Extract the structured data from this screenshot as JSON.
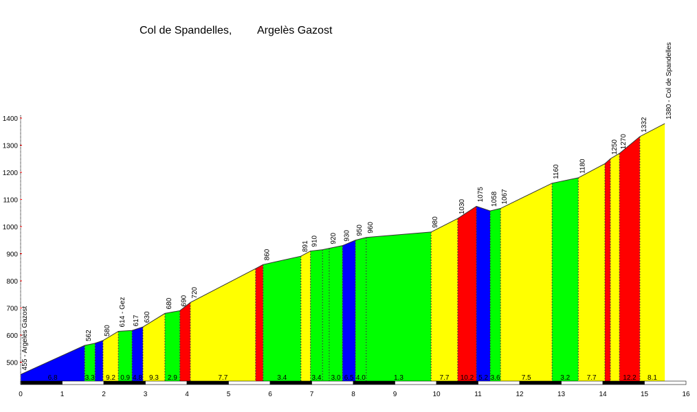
{
  "chart_data": {
    "type": "area",
    "title_left": "Col de Spandelles,",
    "title_right": "Argelès Gazost",
    "xlabel": "",
    "ylabel": "",
    "xlim": [
      0,
      16
    ],
    "ylim": [
      425,
      1400
    ],
    "x_ticks": [
      0,
      1,
      2,
      3,
      4,
      5,
      6,
      7,
      8,
      9,
      10,
      11,
      12,
      13,
      14,
      15,
      16
    ],
    "y_ticks": [
      500,
      600,
      700,
      800,
      900,
      1000,
      1100,
      1200,
      1300,
      1400
    ],
    "grid": false,
    "colors": {
      "blue": "#0000ff",
      "green": "#00ff00",
      "yellow": "#ffff00",
      "red": "#ff0000"
    },
    "points": [
      {
        "km": 0,
        "elev": 455,
        "label": "455 - Argelès Gazost"
      },
      {
        "km": 1.54,
        "elev": 562,
        "label": "562"
      },
      {
        "km": 1.79,
        "elev": 570,
        "label": ""
      },
      {
        "km": 1.98,
        "elev": 580,
        "label": "580"
      },
      {
        "km": 2.35,
        "elev": 614,
        "label": "614 - Gez"
      },
      {
        "km": 2.68,
        "elev": 617,
        "label": "617"
      },
      {
        "km": 2.94,
        "elev": 630,
        "label": "630"
      },
      {
        "km": 3.47,
        "elev": 680,
        "label": "680"
      },
      {
        "km": 3.83,
        "elev": 690,
        "label": "690"
      },
      {
        "km": 4.08,
        "elev": 720,
        "label": "720"
      },
      {
        "km": 5.65,
        "elev": 845,
        "label": ""
      },
      {
        "km": 5.83,
        "elev": 860,
        "label": "860"
      },
      {
        "km": 6.74,
        "elev": 891,
        "label": "891"
      },
      {
        "km": 6.97,
        "elev": 910,
        "label": "910"
      },
      {
        "km": 7.26,
        "elev": 915,
        "label": ""
      },
      {
        "km": 7.42,
        "elev": 920,
        "label": "920"
      },
      {
        "km": 7.74,
        "elev": 930,
        "label": "930"
      },
      {
        "km": 8.05,
        "elev": 950,
        "label": "950"
      },
      {
        "km": 8.31,
        "elev": 960,
        "label": "960"
      },
      {
        "km": 9.87,
        "elev": 980,
        "label": "980"
      },
      {
        "km": 10.51,
        "elev": 1030,
        "label": "1030"
      },
      {
        "km": 10.96,
        "elev": 1075,
        "label": "1075"
      },
      {
        "km": 11.29,
        "elev": 1058,
        "label": "1058"
      },
      {
        "km": 11.54,
        "elev": 1067,
        "label": "1067"
      },
      {
        "km": 12.78,
        "elev": 1160,
        "label": "1160"
      },
      {
        "km": 13.41,
        "elev": 1180,
        "label": "1180"
      },
      {
        "km": 14.05,
        "elev": 1232,
        "label": ""
      },
      {
        "km": 14.18,
        "elev": 1250,
        "label": "1250"
      },
      {
        "km": 14.4,
        "elev": 1270,
        "label": "1270"
      },
      {
        "km": 14.89,
        "elev": 1332,
        "label": "1332"
      },
      {
        "km": 15.49,
        "elev": 1380,
        "label": "1380 - Col de Spandelles"
      }
    ],
    "segments": [
      {
        "color": "blue",
        "grade": "6.8"
      },
      {
        "color": "green",
        "grade": "3.3"
      },
      {
        "color": "blue",
        "grade": ""
      },
      {
        "color": "yellow",
        "grade": "9.2"
      },
      {
        "color": "green",
        "grade": "0.9"
      },
      {
        "color": "blue",
        "grade": "4.8"
      },
      {
        "color": "yellow",
        "grade": "9.3"
      },
      {
        "color": "green",
        "grade": "2.9"
      },
      {
        "color": "red",
        "grade": ""
      },
      {
        "color": "yellow",
        "grade": "7.7"
      },
      {
        "color": "red",
        "grade": ""
      },
      {
        "color": "green",
        "grade": "3.4"
      },
      {
        "color": "yellow",
        "grade": ""
      },
      {
        "color": "green",
        "grade": "3.4"
      },
      {
        "color": "green",
        "grade": ""
      },
      {
        "color": "green",
        "grade": "3.0"
      },
      {
        "color": "blue",
        "grade": "6.5"
      },
      {
        "color": "green",
        "grade": "4.0"
      },
      {
        "color": "green",
        "grade": "1.3"
      },
      {
        "color": "yellow",
        "grade": "7.7"
      },
      {
        "color": "red",
        "grade": "10.2"
      },
      {
        "color": "blue",
        "grade": "5.2"
      },
      {
        "color": "green",
        "grade": "3.6"
      },
      {
        "color": "yellow",
        "grade": "7.5"
      },
      {
        "color": "green",
        "grade": "3.2"
      },
      {
        "color": "yellow",
        "grade": "7.7"
      },
      {
        "color": "red",
        "grade": ""
      },
      {
        "color": "yellow",
        "grade": ""
      },
      {
        "color": "red",
        "grade": "12.2"
      },
      {
        "color": "yellow",
        "grade": "8.1"
      }
    ]
  }
}
